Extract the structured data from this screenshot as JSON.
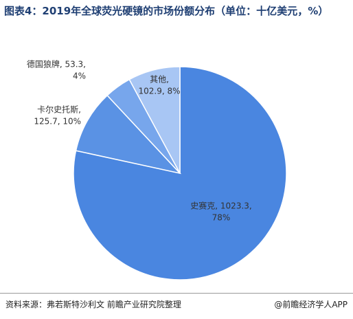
{
  "chart_data": {
    "type": "pie",
    "title": "图表4：2019年全球荧光硬镜的市场份额分布（单位：十亿美元，%）",
    "categories": [
      "史赛克",
      "卡尔史托斯",
      "德国狼牌",
      "其他"
    ],
    "values": [
      1023.3,
      125.7,
      53.3,
      102.9
    ],
    "value_labels": [
      [
        "史赛克, 1023.3,",
        "78%"
      ],
      [
        "卡尔史托斯,",
        "125.7, 10%"
      ],
      [
        "德国狼牌, 53.3,",
        "4%"
      ],
      [
        "其他,",
        "102.9, 8%"
      ]
    ],
    "colors": [
      "#4a86e0",
      "#5a92e4",
      "#77a6ec",
      "#a8c6f4"
    ],
    "source": "资料来源：弗若斯特沙利文 前瞻产业研究院整理",
    "credit": "@前瞻经济学人APP"
  }
}
